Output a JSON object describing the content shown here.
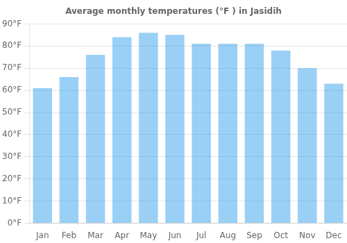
{
  "chart_data": {
    "type": "bar",
    "title": "Average monthly temperatures (°F ) in Jasidih",
    "categories": [
      "Jan",
      "Feb",
      "Mar",
      "Apr",
      "May",
      "Jun",
      "Jul",
      "Aug",
      "Sep",
      "Oct",
      "Nov",
      "Dec"
    ],
    "values": [
      61,
      66,
      76,
      84,
      86,
      85,
      81,
      81,
      81,
      78,
      70,
      63
    ],
    "ylim": [
      0,
      90
    ],
    "yticks": [
      {
        "value": 0,
        "label": "0°F"
      },
      {
        "value": 10,
        "label": "10°F"
      },
      {
        "value": 20,
        "label": "20°F"
      },
      {
        "value": 30,
        "label": "30°F"
      },
      {
        "value": 40,
        "label": "40°F"
      },
      {
        "value": 50,
        "label": "50°F"
      },
      {
        "value": 60,
        "label": "60°F"
      },
      {
        "value": 70,
        "label": "70°F"
      },
      {
        "value": 80,
        "label": "80°F"
      },
      {
        "value": 90,
        "label": "90°F"
      }
    ],
    "grid": true
  }
}
